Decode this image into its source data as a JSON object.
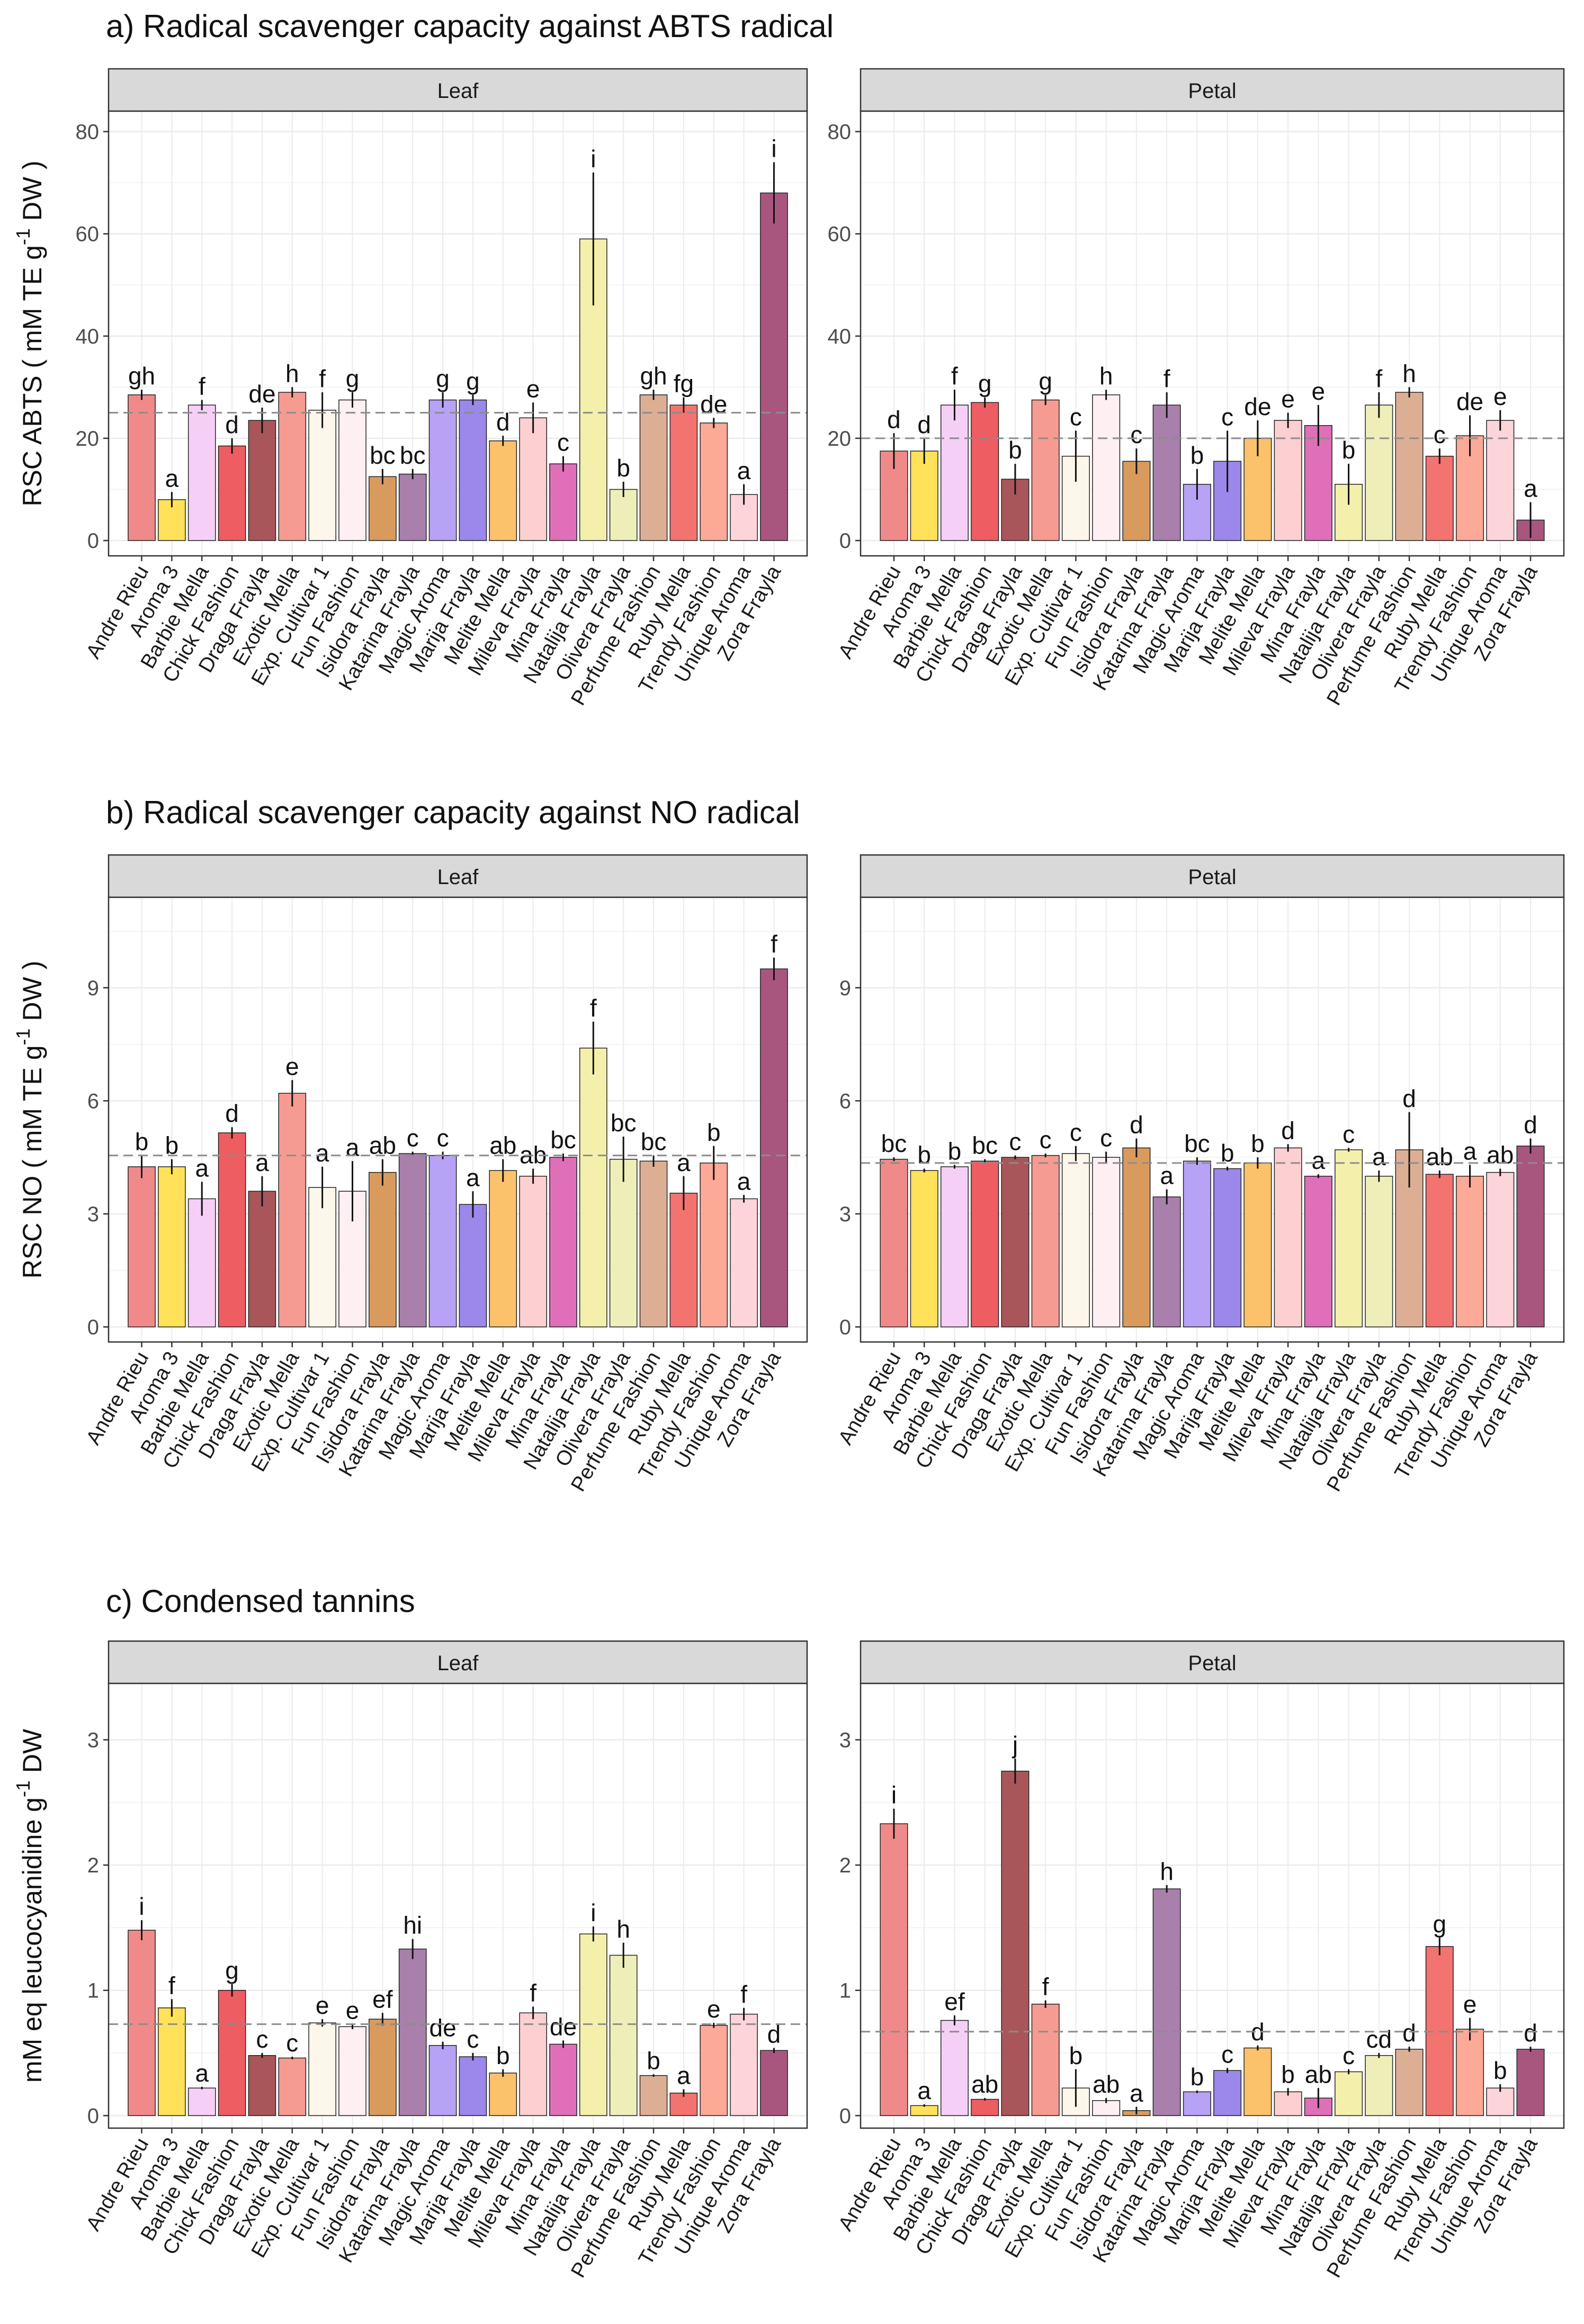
{
  "figure": {
    "categories": [
      "Andre Rieu",
      "Aroma 3",
      "Barbie Mella",
      "Chick Fashion",
      "Draga Frayla",
      "Exotic Mella",
      "Exp. Cultivar 1",
      "Fun Fashion",
      "Isidora Frayla",
      "Katarina Frayla",
      "Magic Aroma",
      "Marija Frayla",
      "Melite Mella",
      "Mileva Frayla",
      "Mina Frayla",
      "Natalija Frayla",
      "Olivera Frayla",
      "Perfume Fashion",
      "Ruby Mella",
      "Trendy Fashion",
      "Unique Aroma",
      "Zora Frayla"
    ],
    "colors": [
      "#f08a8a",
      "#ffe25a",
      "#f6cff7",
      "#ee5d62",
      "#a8565a",
      "#f59b91",
      "#fdf6ea",
      "#fdeff2",
      "#d99a5e",
      "#a97fac",
      "#b7a2f5",
      "#9b88ea",
      "#fbc26b",
      "#fccfd1",
      "#df6fb8",
      "#f4f0ac",
      "#eeeeb9",
      "#dcaf95",
      "#f27370",
      "#fca997",
      "#fdd4da",
      "#a9567f"
    ]
  },
  "chart_data": [
    {
      "type": "bar",
      "panel_title": "a) Radical scavenger capacity against ABTS radical",
      "ylabel_main": "RSC ABTS ( mM TE g",
      "ylabel_sup": "-1",
      "ylabel_end": " DW )",
      "ylim": [
        -3,
        84
      ],
      "yticks": [
        0,
        20,
        40,
        60,
        80
      ],
      "facets": [
        {
          "strip": "Leaf",
          "values": [
            28.5,
            8,
            26.5,
            18.5,
            23.5,
            29,
            25.5,
            27.5,
            12.5,
            13,
            27.5,
            27.5,
            19.5,
            24,
            15,
            59,
            10,
            28.5,
            26.5,
            23,
            9,
            68
          ],
          "errors": [
            1,
            1.5,
            1,
            1.5,
            2.5,
            1,
            3.5,
            1.5,
            1.5,
            1,
            1.5,
            1,
            1,
            3,
            1.5,
            13,
            1.5,
            1,
            1.5,
            1,
            2,
            6
          ],
          "letters": [
            "gh",
            "a",
            "f",
            "d",
            "de",
            "h",
            "f",
            "g",
            "bc",
            "bc",
            "g",
            "g",
            "d",
            "e",
            "c",
            "i",
            "b",
            "gh",
            "fg",
            "de",
            "a",
            "i"
          ],
          "mean": 25
        },
        {
          "strip": "Petal",
          "values": [
            17.5,
            17.5,
            26.5,
            27,
            12,
            27.5,
            16.5,
            28.5,
            15.5,
            26.5,
            11,
            15.5,
            20,
            23.5,
            22.5,
            11,
            26.5,
            29,
            16.5,
            20.5,
            23.5,
            4
          ],
          "errors": [
            3.5,
            2.5,
            3,
            1,
            3,
            1,
            5,
            1,
            2.5,
            2.5,
            3,
            6,
            3.5,
            1.5,
            4,
            4,
            2.5,
            1,
            1.5,
            4,
            2,
            3.5
          ],
          "letters": [
            "d",
            "d",
            "f",
            "g",
            "b",
            "g",
            "c",
            "h",
            "c",
            "f",
            "b",
            "c",
            "de",
            "e",
            "e",
            "b",
            "f",
            "h",
            "c",
            "de",
            "e",
            "a"
          ],
          "mean": 20
        }
      ]
    },
    {
      "type": "bar",
      "panel_title": "b) Radical scavenger capacity against NO radical",
      "ylabel_main": "RSC NO ( mM TE g",
      "ylabel_sup": "-1",
      "ylabel_end": " DW )",
      "ylim": [
        -0.4,
        11.4
      ],
      "yticks": [
        0,
        3,
        6,
        9
      ],
      "facets": [
        {
          "strip": "Leaf",
          "values": [
            4.25,
            4.25,
            3.4,
            5.15,
            3.6,
            6.2,
            3.7,
            3.6,
            4.1,
            4.6,
            4.55,
            3.25,
            4.15,
            4.0,
            4.5,
            7.4,
            4.45,
            4.4,
            3.55,
            4.35,
            3.4,
            9.5
          ],
          "errors": [
            0.3,
            0.2,
            0.45,
            0.15,
            0.4,
            0.35,
            0.55,
            0.8,
            0.35,
            0.05,
            0.1,
            0.35,
            0.3,
            0.2,
            0.1,
            0.7,
            0.6,
            0.15,
            0.45,
            0.45,
            0.1,
            0.3
          ],
          "letters": [
            "b",
            "b",
            "a",
            "d",
            "a",
            "e",
            "a",
            "a",
            "ab",
            "c",
            "c",
            "a",
            "ab",
            "ab",
            "bc",
            "f",
            "bc",
            "bc",
            "a",
            "b",
            "a",
            "f"
          ],
          "mean": 4.55
        },
        {
          "strip": "Petal",
          "values": [
            4.45,
            4.15,
            4.25,
            4.4,
            4.5,
            4.55,
            4.6,
            4.5,
            4.75,
            3.45,
            4.4,
            4.2,
            4.35,
            4.75,
            4.0,
            4.7,
            4.0,
            4.7,
            4.05,
            4.0,
            4.1,
            4.8
          ],
          "errors": [
            0.05,
            0.05,
            0.05,
            0.05,
            0.05,
            0.05,
            0.2,
            0.15,
            0.25,
            0.2,
            0.1,
            0.05,
            0.15,
            0.1,
            0.05,
            0.05,
            0.15,
            1.0,
            0.1,
            0.3,
            0.1,
            0.2
          ],
          "letters": [
            "bc",
            "b",
            "b",
            "bc",
            "c",
            "c",
            "c",
            "c",
            "d",
            "a",
            "bc",
            "b",
            "b",
            "d",
            "a",
            "c",
            "a",
            "d",
            "ab",
            "a",
            "ab",
            "d"
          ],
          "mean": 4.35
        }
      ]
    },
    {
      "type": "bar",
      "panel_title": "c) Condensed tannins",
      "ylabel_main": "mM eq leucocyanidine g",
      "ylabel_sup": "-1",
      "ylabel_end": " DW",
      "ylim": [
        -0.1,
        3.45
      ],
      "yticks": [
        0,
        1,
        2,
        3
      ],
      "facets": [
        {
          "strip": "Leaf",
          "values": [
            1.48,
            0.86,
            0.22,
            1.0,
            0.48,
            0.46,
            0.74,
            0.71,
            0.77,
            1.33,
            0.56,
            0.47,
            0.34,
            0.82,
            0.57,
            1.45,
            1.28,
            0.32,
            0.18,
            0.72,
            0.81,
            0.52
          ],
          "errors": [
            0.08,
            0.07,
            0.01,
            0.05,
            0.02,
            0.01,
            0.03,
            0.02,
            0.05,
            0.08,
            0.03,
            0.03,
            0.03,
            0.05,
            0.03,
            0.06,
            0.1,
            0.01,
            0.03,
            0.02,
            0.05,
            0.02
          ],
          "letters": [
            "i",
            "f",
            "a",
            "g",
            "c",
            "c",
            "e",
            "e",
            "ef",
            "hi",
            "de",
            "c",
            "b",
            "f",
            "de",
            "i",
            "h",
            "b",
            "a",
            "e",
            "f",
            "d"
          ],
          "mean": 0.73
        },
        {
          "strip": "Petal",
          "values": [
            2.33,
            0.08,
            0.76,
            0.13,
            2.75,
            0.89,
            0.22,
            0.12,
            0.04,
            1.81,
            0.19,
            0.36,
            0.54,
            0.19,
            0.14,
            0.35,
            0.48,
            0.53,
            1.35,
            0.69,
            0.22,
            0.53
          ],
          "errors": [
            0.12,
            0.01,
            0.04,
            0.01,
            0.1,
            0.03,
            0.15,
            0.02,
            0.03,
            0.03,
            0.01,
            0.02,
            0.02,
            0.03,
            0.08,
            0.02,
            0.02,
            0.02,
            0.07,
            0.09,
            0.03,
            0.02
          ],
          "letters": [
            "i",
            "a",
            "ef",
            "ab",
            "j",
            "f",
            "b",
            "ab",
            "a",
            "h",
            "b",
            "c",
            "d",
            "b",
            "ab",
            "c",
            "cd",
            "d",
            "g",
            "e",
            "b",
            "d"
          ],
          "mean": 0.67
        }
      ]
    }
  ]
}
